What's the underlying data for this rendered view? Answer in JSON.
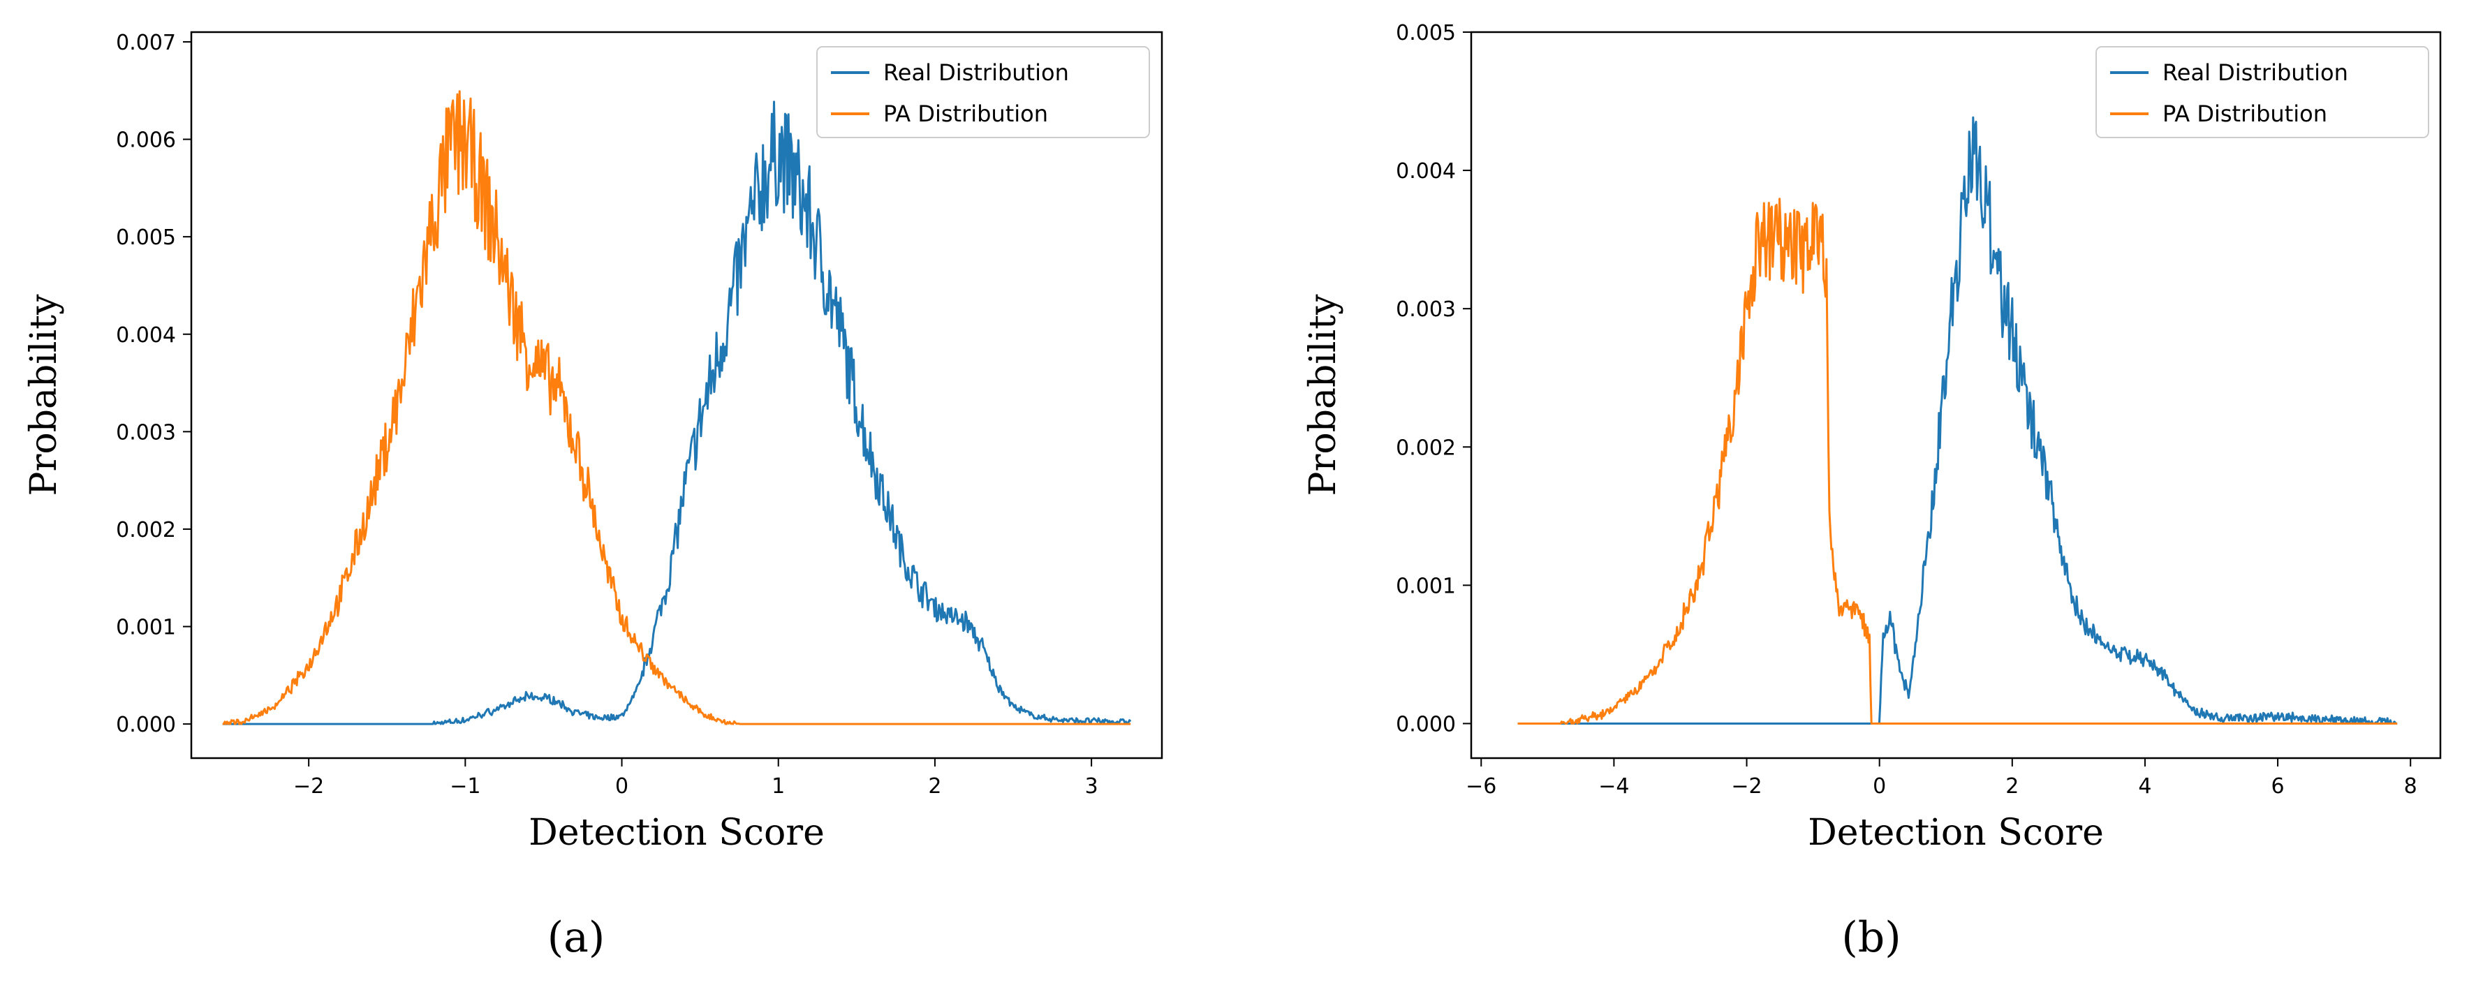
{
  "colors": {
    "real": "#1f77b4",
    "pa": "#ff7f0e",
    "axes": "#000000",
    "legend_frame": "#cccccc"
  },
  "chart_data": [
    {
      "id": "a",
      "type": "line",
      "caption": "(a)",
      "xlabel": "Detection Score",
      "ylabel": "Probability",
      "xlim": [
        -2.75,
        3.45
      ],
      "ylim": [
        -0.00035,
        0.0071
      ],
      "xticks": [
        -2,
        -1,
        0,
        1,
        2,
        3
      ],
      "xtick_labels": [
        "−2",
        "−1",
        "0",
        "1",
        "2",
        "3"
      ],
      "yticks": [
        0.0,
        0.001,
        0.002,
        0.003,
        0.004,
        0.005,
        0.006,
        0.007
      ],
      "ytick_labels": [
        "0.000",
        "0.001",
        "0.002",
        "0.003",
        "0.004",
        "0.005",
        "0.006",
        "0.007"
      ],
      "legend": {
        "position": "top-right",
        "entries": [
          "Real Distribution",
          "PA Distribution"
        ]
      },
      "noise": 0.1,
      "series": [
        {
          "name": "Real Distribution",
          "color_key": "real",
          "x": [
            -2.55,
            -1.8,
            -1.2,
            -1.0,
            -0.8,
            -0.6,
            -0.45,
            -0.3,
            -0.15,
            0.0,
            0.1,
            0.2,
            0.3,
            0.4,
            0.5,
            0.6,
            0.7,
            0.8,
            0.9,
            1.0,
            1.1,
            1.2,
            1.3,
            1.4,
            1.5,
            1.6,
            1.7,
            1.8,
            1.9,
            2.0,
            2.1,
            2.2,
            2.3,
            2.4,
            2.5,
            2.6,
            2.7,
            2.8,
            3.0,
            3.25
          ],
          "y": [
            0.0,
            0.0,
            0.0,
            4e-05,
            0.00015,
            0.00028,
            0.00026,
            0.00012,
            6e-05,
            8e-05,
            0.00035,
            0.0009,
            0.0015,
            0.0024,
            0.0031,
            0.0037,
            0.0043,
            0.005,
            0.0056,
            0.0059,
            0.0056,
            0.0052,
            0.0046,
            0.004,
            0.0033,
            0.0027,
            0.0022,
            0.0017,
            0.0014,
            0.0012,
            0.0011,
            0.00105,
            0.0008,
            0.0004,
            0.00018,
            0.0001,
            6e-05,
            4e-05,
            3e-05,
            2e-05
          ]
        },
        {
          "name": "PA Distribution",
          "color_key": "pa",
          "x": [
            -2.55,
            -2.4,
            -2.2,
            -2.0,
            -1.8,
            -1.6,
            -1.4,
            -1.3,
            -1.2,
            -1.1,
            -1.0,
            -0.9,
            -0.8,
            -0.7,
            -0.6,
            -0.5,
            -0.4,
            -0.3,
            -0.2,
            -0.1,
            0.0,
            0.1,
            0.2,
            0.3,
            0.4,
            0.5,
            0.6,
            0.7,
            0.75,
            3.25
          ],
          "y": [
            0.0,
            3e-05,
            0.0002,
            0.0006,
            0.0013,
            0.0023,
            0.0035,
            0.0044,
            0.0052,
            0.0059,
            0.006,
            0.0055,
            0.005,
            0.0043,
            0.0038,
            0.0036,
            0.0034,
            0.0029,
            0.0023,
            0.0016,
            0.0011,
            0.0008,
            0.0006,
            0.0004,
            0.00025,
            0.00012,
            5e-05,
            1e-05,
            0.0,
            0.0
          ]
        }
      ]
    },
    {
      "id": "b",
      "type": "line",
      "caption": "(b)",
      "xlabel": "Detection Score",
      "ylabel": "Probability",
      "xlim": [
        -6.15,
        8.45
      ],
      "ylim": [
        -0.00025,
        0.005
      ],
      "xticks": [
        -6,
        -4,
        -2,
        0,
        2,
        4,
        6,
        8
      ],
      "xtick_labels": [
        "−6",
        "−4",
        "−2",
        "0",
        "2",
        "4",
        "6",
        "8"
      ],
      "yticks": [
        0.0,
        0.001,
        0.002,
        0.003,
        0.004,
        0.005
      ],
      "ytick_labels": [
        "0.000",
        "0.001",
        "0.002",
        "0.003",
        "0.004",
        "0.005"
      ],
      "legend": {
        "position": "top-right",
        "entries": [
          "Real Distribution",
          "PA Distribution"
        ]
      },
      "noise": 0.09,
      "series": [
        {
          "name": "Real Distribution",
          "color_key": "real",
          "x": [
            -5.45,
            -0.1,
            0.0,
            0.05,
            0.15,
            0.3,
            0.45,
            0.6,
            0.8,
            1.0,
            1.2,
            1.4,
            1.6,
            1.8,
            2.0,
            2.2,
            2.4,
            2.6,
            2.8,
            3.0,
            3.3,
            3.6,
            3.9,
            4.2,
            4.5,
            4.8,
            5.2,
            5.6,
            6.0,
            6.5,
            7.0,
            7.8
          ],
          "y": [
            0.0,
            0.0,
            0.0,
            0.0006,
            0.0008,
            0.0004,
            0.0002,
            0.0008,
            0.0016,
            0.0026,
            0.0034,
            0.0041,
            0.0038,
            0.0032,
            0.0028,
            0.0024,
            0.002,
            0.0016,
            0.0011,
            0.0008,
            0.0006,
            0.0005,
            0.00048,
            0.0004,
            0.0002,
            8e-05,
            4e-05,
            4e-05,
            5e-05,
            4e-05,
            2e-05,
            1e-05
          ]
        },
        {
          "name": "PA Distribution",
          "color_key": "pa",
          "x": [
            -5.45,
            -4.8,
            -4.2,
            -3.8,
            -3.4,
            -3.0,
            -2.7,
            -2.4,
            -2.2,
            -2.0,
            -1.8,
            -1.6,
            -1.4,
            -1.2,
            -1.0,
            -0.9,
            -0.8,
            -0.75,
            -0.6,
            -0.5,
            -0.45,
            -0.3,
            -0.15,
            -0.12,
            7.8
          ],
          "y": [
            0.0,
            0.0,
            6e-05,
            0.00018,
            0.00038,
            0.0007,
            0.0011,
            0.0017,
            0.0023,
            0.003,
            0.0035,
            0.0035,
            0.0035,
            0.0034,
            0.0035,
            0.0036,
            0.0033,
            0.0013,
            0.0008,
            0.0009,
            0.00085,
            0.0008,
            0.0006,
            0.0,
            0.0
          ]
        }
      ]
    }
  ]
}
